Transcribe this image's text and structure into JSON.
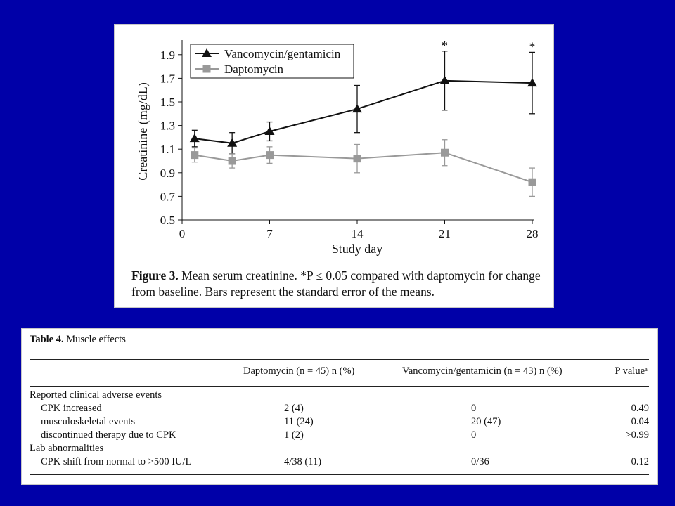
{
  "chart_data": {
    "type": "line",
    "ylabel": "Creatinine (mg/dL)",
    "xlabel": "Study day",
    "xlim": [
      0,
      28
    ],
    "ylim": [
      0.5,
      2.0
    ],
    "x_ticks": [
      0,
      7,
      14,
      21,
      28
    ],
    "y_ticks": [
      0.5,
      0.7,
      0.9,
      1.1,
      1.3,
      1.5,
      1.7,
      1.9
    ],
    "grid": false,
    "legend_position": "top-left",
    "series": [
      {
        "name": "Vancomycin/gentamicin",
        "marker": "triangle",
        "color": "#111111",
        "x": [
          1,
          4,
          7,
          14,
          21,
          28
        ],
        "y": [
          1.19,
          1.15,
          1.25,
          1.44,
          1.68,
          1.66
        ],
        "error": [
          0.07,
          0.09,
          0.08,
          0.2,
          0.25,
          0.26
        ]
      },
      {
        "name": "Daptomycin",
        "marker": "square",
        "color": "#999999",
        "x": [
          1,
          4,
          7,
          14,
          21,
          28
        ],
        "y": [
          1.05,
          1.0,
          1.05,
          1.02,
          1.07,
          0.82
        ],
        "error": [
          0.06,
          0.06,
          0.07,
          0.12,
          0.11,
          0.12
        ]
      }
    ],
    "annotations": [
      {
        "x": 21,
        "text": "*"
      },
      {
        "x": 28,
        "text": "*"
      }
    ]
  },
  "figure_caption": {
    "label": "Figure 3.",
    "text": " Mean serum creatinine. *P ≤ 0.05 compared with daptomycin for change from baseline. Bars represent the standard error of the means."
  },
  "table": {
    "label": "Table 4.",
    "title": " Muscle effects",
    "headers": [
      "",
      "Daptomycin (n = 45) n (%)",
      "Vancomycin/gentamicin (n = 43) n (%)",
      "P valueᵃ"
    ],
    "rows": [
      {
        "label": "Reported clinical adverse events",
        "indent": false,
        "cells": [
          "",
          "",
          ""
        ]
      },
      {
        "label": "CPK increased",
        "indent": true,
        "cells": [
          "2 (4)",
          "0",
          "0.49"
        ]
      },
      {
        "label": "musculoskeletal events",
        "indent": true,
        "cells": [
          "11 (24)",
          "20 (47)",
          "0.04"
        ]
      },
      {
        "label": "discontinued therapy due to CPK",
        "indent": true,
        "cells": [
          "1 (2)",
          "0",
          ">0.99"
        ]
      },
      {
        "label": "Lab abnormalities",
        "indent": false,
        "cells": [
          "",
          "",
          ""
        ]
      },
      {
        "label": "CPK shift from normal to >500 IU/L",
        "indent": true,
        "cells": [
          "4/38 (11)",
          "0/36",
          "0.12"
        ]
      }
    ]
  }
}
